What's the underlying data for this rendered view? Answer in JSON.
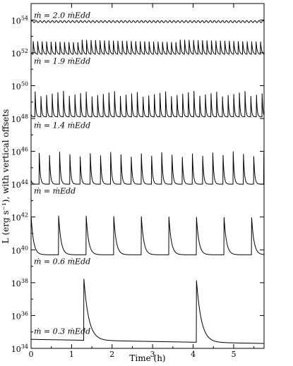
{
  "chart_data": {
    "type": "line",
    "xlabel": "Time (h)",
    "ylabel": "L (erg s⁻¹), with vertical offsets",
    "xlim": [
      0,
      5.75
    ],
    "ylim_log10": [
      34,
      55
    ],
    "x_ticks": [
      0,
      1,
      2,
      3,
      4,
      5
    ],
    "y_tick_labels": [
      {
        "exp": 34,
        "text": "10",
        "sup": "34"
      },
      {
        "exp": 36,
        "text": "10",
        "sup": "36"
      },
      {
        "exp": 38,
        "text": "10",
        "sup": "38"
      },
      {
        "exp": 40,
        "text": "10",
        "sup": "40"
      },
      {
        "exp": 42,
        "text": "10",
        "sup": "42"
      },
      {
        "exp": 44,
        "text": "10",
        "sup": "44"
      },
      {
        "exp": 46,
        "text": "10",
        "sup": "46"
      },
      {
        "exp": 48,
        "text": "10",
        "sup": "48"
      },
      {
        "exp": 50,
        "text": "10",
        "sup": "50"
      },
      {
        "exp": 52,
        "text": "10",
        "sup": "52"
      },
      {
        "exp": 54,
        "text": "10",
        "sup": "54"
      }
    ],
    "series": [
      {
        "name": "ṁ = 0.3 ṁEdd",
        "label_log": 35.05,
        "base_log": 34.55,
        "peak_log": 38.4,
        "period": 2.78,
        "first_peak": 1.3,
        "decay": 0.12,
        "trend": -0.25
      },
      {
        "name": "ṁ = 0.6 ṁEdd",
        "label_log": 39.3,
        "base_log": 39.7,
        "peak_log": 42.1,
        "period": 0.68,
        "first_peak": 0.68,
        "decay": 0.06,
        "trend": 0
      },
      {
        "name": "ṁ = ṁEdd",
        "label_log": 43.6,
        "base_log": 44.0,
        "peak_log": 46.0,
        "period": 0.252,
        "first_peak": 0.2,
        "decay": 0.025,
        "trend": 0
      },
      {
        "name": "ṁ = 1.4 ṁEdd",
        "label_log": 47.6,
        "base_log": 48.1,
        "peak_log": 49.7,
        "period": 0.14,
        "first_peak": 0.1,
        "decay": 0.018,
        "trend": 0
      },
      {
        "name": "ṁ = 1.9 ṁEdd",
        "label_log": 51.5,
        "base_log": 51.9,
        "peak_log": 52.8,
        "period": 0.11,
        "first_peak": 0.05,
        "decay": 0.025,
        "trend": 0
      },
      {
        "name": "ṁ = 2.0 ṁEdd",
        "label_log": 54.3,
        "base_log": 53.9,
        "peak_log": 53.9,
        "period": 0.1,
        "first_peak": 0.05,
        "decay": 0.02,
        "trend": 0
      }
    ]
  }
}
